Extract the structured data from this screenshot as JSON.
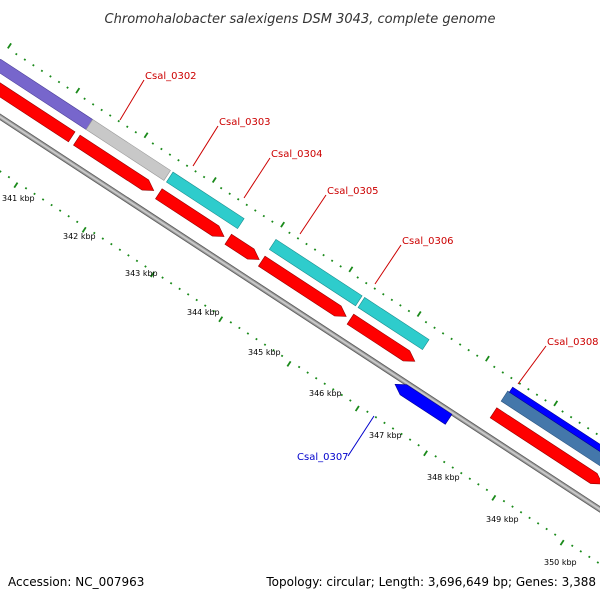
{
  "map": {
    "title": "Chromohalobacter salexigens DSM 3043, complete genome",
    "accession": "Accession: NC_007963",
    "topology": "Topology: circular; Length: 3,696,649 bp; Genes: 3,388"
  },
  "ticks": [
    "341 kbp",
    "342 kbp",
    "343 kbp",
    "344 kbp",
    "345 kbp",
    "346 kbp",
    "347 kbp",
    "348 kbp",
    "349 kbp",
    "350 kbp"
  ],
  "genes": [
    {
      "name": "Csal_0302",
      "color": "#cc0000"
    },
    {
      "name": "Csal_0303",
      "color": "#cc0000"
    },
    {
      "name": "Csal_0304",
      "color": "#cc0000"
    },
    {
      "name": "Csal_0305",
      "color": "#cc0000"
    },
    {
      "name": "Csal_0306",
      "color": "#cc0000"
    },
    {
      "name": "Csal_0307",
      "color": "#0000cc"
    },
    {
      "name": "Csal_0308",
      "color": "#cc0000"
    }
  ],
  "colors": {
    "backbone": "#8c8c8c",
    "cds": "#ff0000",
    "reverse_gene": "#0000ff",
    "gc_high": "#2ecccc",
    "gc_neutral": "#c8c8c8",
    "gc_purple": "#7766cc",
    "gc_steel": "#4477aa",
    "tick": "#1a8a1a"
  }
}
